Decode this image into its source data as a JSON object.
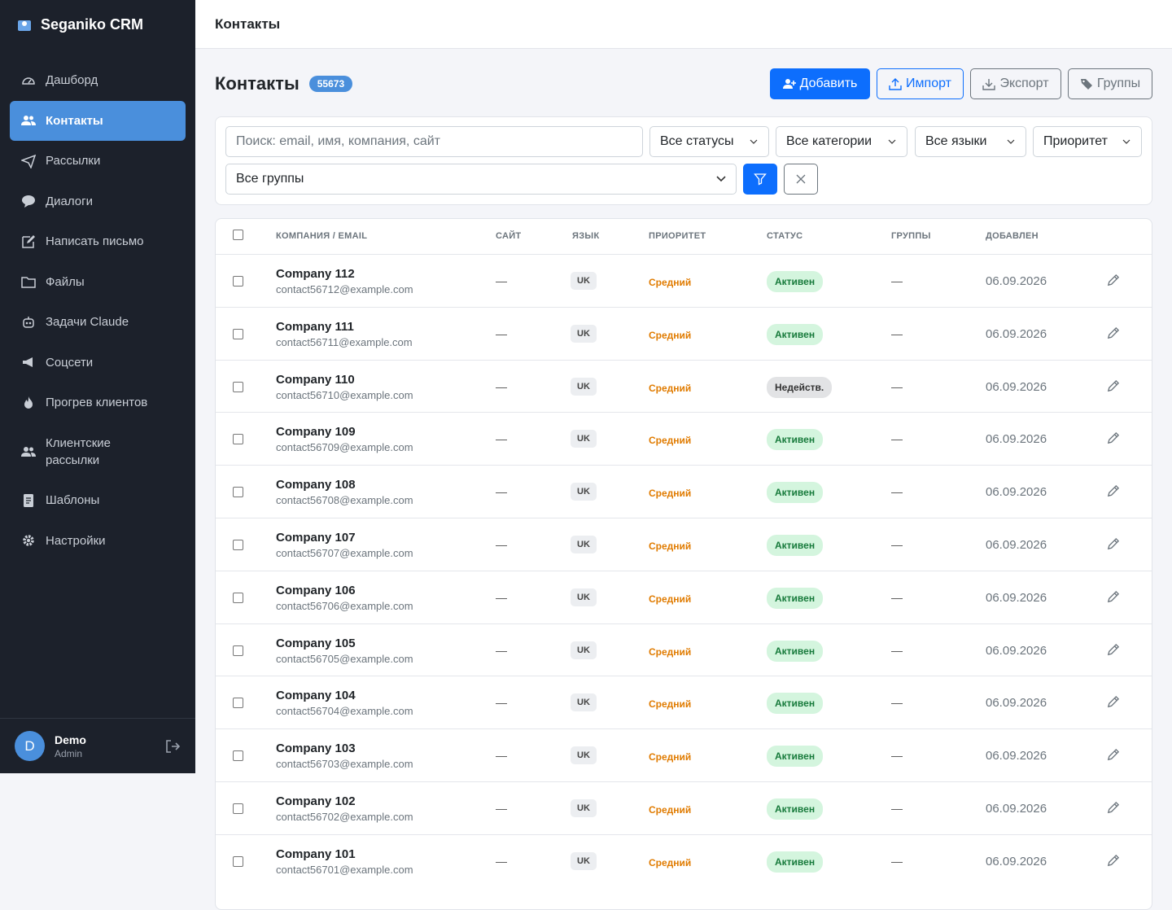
{
  "sidebar": {
    "brand": "Seganiko CRM",
    "nav": [
      "Дашборд",
      "Контакты",
      "Рассылки",
      "Диалоги",
      "Написать письмо",
      "Файлы",
      "Задачи Claude",
      "Соцсети",
      "Прогрев клиентов",
      "Клиентские рассылки",
      "Шаблоны",
      "Настройки"
    ],
    "user": {
      "initial": "D",
      "name": "Demo",
      "role": "Admin"
    }
  },
  "topbar": {
    "title": "Контакты"
  },
  "page": {
    "title": "Контакты",
    "count": 55673,
    "actions": [
      "Добавить",
      "Импорт",
      "Экспорт",
      "Группы"
    ]
  },
  "filters": {
    "search_placeholder": "Поиск: email, имя, компания, сайт",
    "selects": [
      "Все статусы",
      "Все категории",
      "Все языки",
      "Приоритет"
    ],
    "group_select": "Все группы"
  },
  "table": {
    "columns": [
      "КОМПАНИЯ / EMAIL",
      "САЙТ",
      "ЯЗЫК",
      "ПРИОРИТЕТ",
      "СТАТУС",
      "ГРУППЫ",
      "ДОБАВЛЕН"
    ],
    "rows": [
      {
        "company": "Company 112",
        "email": "contact56712@example.com",
        "site": "—",
        "language": "UK",
        "priority": "Средний",
        "status": "Активен",
        "groups": "—",
        "added": "06.09.2026"
      },
      {
        "company": "Company 111",
        "email": "contact56711@example.com",
        "site": "—",
        "language": "UK",
        "priority": "Средний",
        "status": "Активен",
        "groups": "—",
        "added": "06.09.2026"
      },
      {
        "company": "Company 110",
        "email": "contact56710@example.com",
        "site": "—",
        "language": "UK",
        "priority": "Средний",
        "status": "Недейств.",
        "groups": "—",
        "added": "06.09.2026"
      },
      {
        "company": "Company 109",
        "email": "contact56709@example.com",
        "site": "—",
        "language": "UK",
        "priority": "Средний",
        "status": "Активен",
        "groups": "—",
        "added": "06.09.2026"
      },
      {
        "company": "Company 108",
        "email": "contact56708@example.com",
        "site": "—",
        "language": "UK",
        "priority": "Средний",
        "status": "Активен",
        "groups": "—",
        "added": "06.09.2026"
      },
      {
        "company": "Company 107",
        "email": "contact56707@example.com",
        "site": "—",
        "language": "UK",
        "priority": "Средний",
        "status": "Активен",
        "groups": "—",
        "added": "06.09.2026"
      },
      {
        "company": "Company 106",
        "email": "contact56706@example.com",
        "site": "—",
        "language": "UK",
        "priority": "Средний",
        "status": "Активен",
        "groups": "—",
        "added": "06.09.2026"
      },
      {
        "company": "Company 105",
        "email": "contact56705@example.com",
        "site": "—",
        "language": "UK",
        "priority": "Средний",
        "status": "Активен",
        "groups": "—",
        "added": "06.09.2026"
      },
      {
        "company": "Company 104",
        "email": "contact56704@example.com",
        "site": "—",
        "language": "UK",
        "priority": "Средний",
        "status": "Активен",
        "groups": "—",
        "added": "06.09.2026"
      },
      {
        "company": "Company 103",
        "email": "contact56703@example.com",
        "site": "—",
        "language": "UK",
        "priority": "Средний",
        "status": "Активен",
        "groups": "—",
        "added": "06.09.2026"
      },
      {
        "company": "Company 102",
        "email": "contact56702@example.com",
        "site": "—",
        "language": "UK",
        "priority": "Средний",
        "status": "Активен",
        "groups": "—",
        "added": "06.09.2026"
      },
      {
        "company": "Company 101",
        "email": "contact56701@example.com",
        "site": "—",
        "language": "UK",
        "priority": "Средний",
        "status": "Активен",
        "groups": "—",
        "added": "06.09.2026"
      }
    ]
  }
}
